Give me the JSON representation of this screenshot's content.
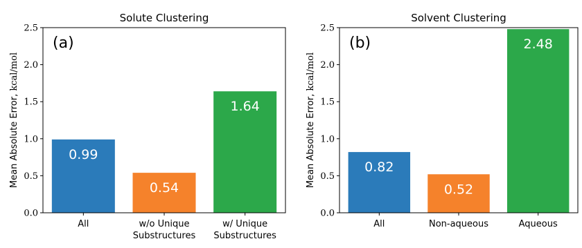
{
  "chart_data": [
    {
      "type": "bar",
      "title": "Solute Clustering",
      "panel_label": "(a)",
      "ylabel_text": "Mean Absolute Error, ",
      "ylabel_unit": "kcal/mol",
      "ylim": [
        0,
        2.5
      ],
      "yticks": [
        "0.0",
        "0.5",
        "1.0",
        "1.5",
        "2.0",
        "2.5"
      ],
      "categories": [
        [
          "All"
        ],
        [
          "w/o Unique",
          "Substructures"
        ],
        [
          "w/ Unique",
          "Substructures"
        ]
      ],
      "values": [
        0.99,
        0.54,
        1.64
      ],
      "value_labels": [
        "0.99",
        "0.54",
        "1.64"
      ],
      "colors": [
        "#2b7bba",
        "#f5822b",
        "#2ca84a"
      ],
      "grid": false
    },
    {
      "type": "bar",
      "title": "Solvent Clustering",
      "panel_label": "(b)",
      "ylabel_text": "Mean Absolute Error, ",
      "ylabel_unit": "kcal/mol",
      "ylim": [
        0,
        2.5
      ],
      "yticks": [
        "0.0",
        "0.5",
        "1.0",
        "1.5",
        "2.0",
        "2.5"
      ],
      "categories": [
        [
          "All"
        ],
        [
          "Non-aqueous"
        ],
        [
          "Aqueous"
        ]
      ],
      "values": [
        0.82,
        0.52,
        2.48
      ],
      "value_labels": [
        "0.82",
        "0.52",
        "2.48"
      ],
      "colors": [
        "#2b7bba",
        "#f5822b",
        "#2ca84a"
      ],
      "grid": false
    }
  ]
}
